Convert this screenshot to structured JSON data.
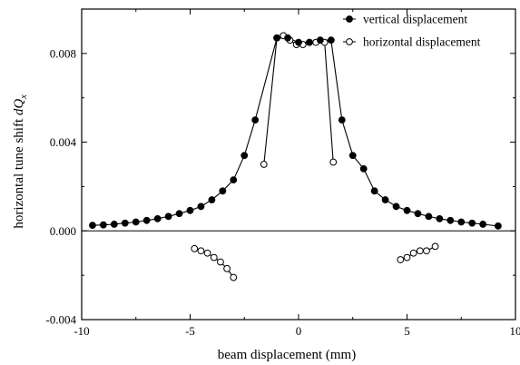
{
  "chart_data": {
    "type": "line",
    "xlabel": "beam displacement  (mm)",
    "ylabel_main": "horizontal tune shift ",
    "ylabel_symbol": "dQ",
    "ylabel_subscript": "x",
    "xlim": [
      -10,
      10
    ],
    "ylim": [
      -0.004,
      0.01
    ],
    "xticks": [
      -10,
      -5,
      0,
      5,
      10
    ],
    "xtick_labels": [
      "-10",
      "-5",
      "0",
      "5",
      "10"
    ],
    "yticks": [
      -0.004,
      0.0,
      0.004,
      0.008
    ],
    "ytick_labels": [
      "-0.004",
      "0.000",
      "0.004",
      "0.008"
    ],
    "grid": false,
    "legend_position": "top-right",
    "series": [
      {
        "name": "vertical displacement",
        "marker": "filled-circle",
        "color": "#000000",
        "x": [
          -9.5,
          -9.0,
          -8.5,
          -8.0,
          -7.5,
          -7.0,
          -6.5,
          -6.0,
          -5.5,
          -5.0,
          -4.5,
          -4.0,
          -3.5,
          -3.0,
          -2.5,
          -2.0,
          -1.0,
          -0.5,
          0.0,
          0.5,
          1.0,
          1.5,
          2.0,
          2.5,
          3.0,
          3.5,
          4.0,
          4.5,
          5.0,
          5.5,
          6.0,
          6.5,
          7.0,
          7.5,
          8.0,
          8.5,
          9.2
        ],
        "y": [
          0.00025,
          0.00027,
          0.0003,
          0.00035,
          0.0004,
          0.00047,
          0.00055,
          0.00065,
          0.00078,
          0.00092,
          0.0011,
          0.0014,
          0.0018,
          0.0023,
          0.0034,
          0.005,
          0.0087,
          0.0087,
          0.0085,
          0.0085,
          0.0086,
          0.0086,
          0.005,
          0.0034,
          0.0028,
          0.0018,
          0.0014,
          0.0011,
          0.00092,
          0.00078,
          0.00065,
          0.00055,
          0.00047,
          0.0004,
          0.00035,
          0.0003,
          0.00022
        ]
      },
      {
        "name": "horizontal displacement",
        "marker": "open-circle",
        "color": "#000000",
        "segments": [
          {
            "x": [
              -4.8,
              -4.5,
              -4.2,
              -3.9,
              -3.6,
              -3.3,
              -3.0
            ],
            "y": [
              -0.0008,
              -0.0009,
              -0.001,
              -0.0012,
              -0.0014,
              -0.0017,
              -0.0021
            ]
          },
          {
            "x": [
              -1.6,
              -1.0,
              -0.7,
              -0.4,
              -0.1,
              0.2,
              0.5,
              0.8,
              1.2,
              1.6
            ],
            "y": [
              0.003,
              0.0087,
              0.0088,
              0.0086,
              0.0084,
              0.0084,
              0.0085,
              0.0085,
              0.0085,
              0.0031
            ]
          },
          {
            "x": [
              4.7,
              5.0,
              5.3,
              5.6,
              5.9,
              6.3
            ],
            "y": [
              -0.0013,
              -0.0012,
              -0.001,
              -0.0009,
              -0.0009,
              -0.0007
            ]
          }
        ]
      }
    ]
  }
}
